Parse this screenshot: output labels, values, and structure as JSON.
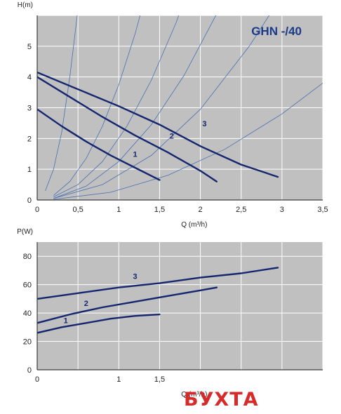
{
  "watermark": "БУХТА",
  "colors": {
    "panel_bg": "#c0c0c0",
    "grid": "#ffffff",
    "frame": "#3c3c3c",
    "curve": "#14266e",
    "system_curve": "#4a6fb0",
    "watermark": "#d62b2b"
  },
  "chart_data": [
    {
      "type": "line",
      "title": "GHN -/40",
      "xlabel": "Q (m³/h)",
      "ylabel": "H(m)",
      "xlim": [
        0,
        3.5
      ],
      "ylim": [
        0,
        6
      ],
      "x_ticks": [
        "0",
        "0,5",
        "1",
        "1,5",
        "2",
        "2,5",
        "3",
        "3,5"
      ],
      "x_tick_values": [
        0,
        0.5,
        1,
        1.5,
        2,
        2.5,
        3,
        3.5
      ],
      "y_ticks": [
        "0",
        "1",
        "2",
        "3",
        "4",
        "5"
      ],
      "y_tick_values": [
        0,
        1,
        2,
        3,
        4,
        5
      ],
      "grid": true,
      "series": [
        {
          "name": "1",
          "x": [
            0,
            0.3,
            0.6,
            0.9,
            1.2,
            1.5
          ],
          "y": [
            2.95,
            2.4,
            1.9,
            1.45,
            1.05,
            0.65
          ]
        },
        {
          "name": "2",
          "x": [
            0,
            0.4,
            0.8,
            1.2,
            1.6,
            2.0,
            2.2
          ],
          "y": [
            4.0,
            3.35,
            2.7,
            2.1,
            1.55,
            0.95,
            0.6
          ]
        },
        {
          "name": "3",
          "x": [
            0,
            0.5,
            1.0,
            1.5,
            2.0,
            2.5,
            2.95
          ],
          "y": [
            4.15,
            3.6,
            3.05,
            2.45,
            1.75,
            1.15,
            0.75
          ]
        }
      ],
      "system_curves": [
        {
          "x": [
            0.1,
            0.2,
            0.3,
            0.4,
            0.5,
            0.6
          ],
          "y": [
            0.3,
            1.0,
            2.2,
            4.0,
            6.2,
            8.8
          ]
        },
        {
          "x": [
            0.2,
            0.4,
            0.6,
            0.8,
            1.0,
            1.2,
            1.4
          ],
          "y": [
            0.15,
            0.6,
            1.35,
            2.4,
            3.75,
            5.4,
            7.35
          ]
        },
        {
          "x": [
            0.2,
            0.5,
            0.8,
            1.1,
            1.4,
            1.7,
            2.0
          ],
          "y": [
            0.1,
            0.5,
            1.25,
            2.4,
            3.9,
            5.75,
            7.95
          ]
        },
        {
          "x": [
            0.2,
            0.6,
            1.0,
            1.4,
            1.8,
            2.2,
            2.6
          ],
          "y": [
            0.05,
            0.45,
            1.25,
            2.45,
            4.05,
            6.05,
            8.45
          ]
        },
        {
          "x": [
            0.2,
            0.8,
            1.4,
            2.0,
            2.6,
            3.0
          ],
          "y": [
            0.05,
            0.5,
            1.45,
            2.95,
            5.0,
            6.65
          ]
        },
        {
          "x": [
            0.2,
            0.9,
            1.6,
            2.3,
            3.0,
            3.5
          ],
          "y": [
            0.02,
            0.25,
            0.8,
            1.65,
            2.8,
            3.8
          ]
        }
      ],
      "curve_label_points": [
        {
          "text": "1",
          "x": 1.2,
          "y": 1.4
        },
        {
          "text": "2",
          "x": 1.65,
          "y": 2.0
        },
        {
          "text": "3",
          "x": 2.05,
          "y": 2.4
        }
      ]
    },
    {
      "type": "line",
      "xlabel": "Q (m³/h)",
      "ylabel": "P(W)",
      "xlim": [
        0,
        3.5
      ],
      "ylim": [
        0,
        90
      ],
      "x_ticks": [
        "0",
        "1",
        "1,5"
      ],
      "x_tick_values": [
        0,
        1,
        1.5
      ],
      "y_ticks": [
        "0",
        "20",
        "40",
        "60",
        "80"
      ],
      "y_tick_values": [
        0,
        20,
        40,
        60,
        80
      ],
      "grid": true,
      "series": [
        {
          "name": "1",
          "x": [
            0,
            0.3,
            0.6,
            0.9,
            1.2,
            1.5
          ],
          "y": [
            26,
            30,
            33,
            36,
            38,
            39
          ]
        },
        {
          "name": "2",
          "x": [
            0,
            0.4,
            0.8,
            1.2,
            1.6,
            2.0,
            2.2
          ],
          "y": [
            33,
            39,
            44,
            48,
            52,
            56,
            58
          ]
        },
        {
          "name": "3",
          "x": [
            0,
            0.5,
            1.0,
            1.5,
            2.0,
            2.5,
            2.95
          ],
          "y": [
            50,
            54,
            58,
            61,
            65,
            68,
            72
          ]
        }
      ],
      "curve_label_points": [
        {
          "text": "1",
          "x": 0.35,
          "y": 33
        },
        {
          "text": "2",
          "x": 0.6,
          "y": 45
        },
        {
          "text": "3",
          "x": 1.2,
          "y": 64
        }
      ]
    }
  ]
}
